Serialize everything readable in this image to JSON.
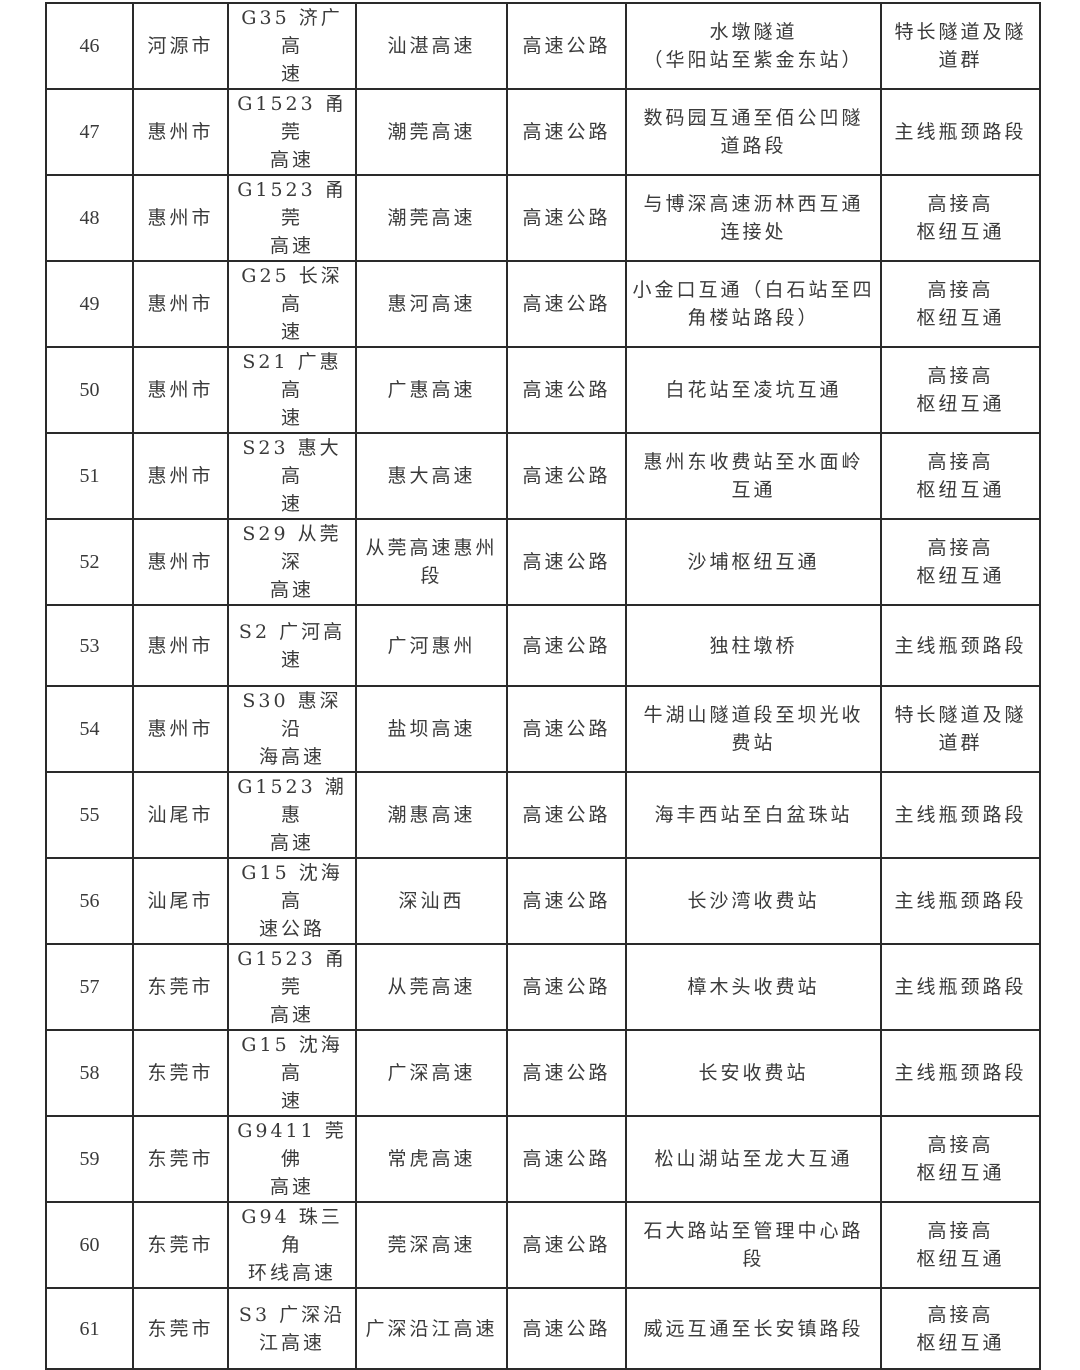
{
  "table": {
    "rows": [
      [
        "46",
        "河源市",
        "G35 济广高\n速",
        "汕湛高速",
        "高速公路",
        "水墩隧道\n（华阳站至紫金东站）",
        "特长隧道及隧\n道群"
      ],
      [
        "47",
        "惠州市",
        "G1523 甬莞\n高速",
        "潮莞高速",
        "高速公路",
        "数码园互通至佰公凹隧\n道路段",
        "主线瓶颈路段"
      ],
      [
        "48",
        "惠州市",
        "G1523 甬莞\n高速",
        "潮莞高速",
        "高速公路",
        "与博深高速沥林西互通\n连接处",
        "高接高\n枢纽互通"
      ],
      [
        "49",
        "惠州市",
        "G25 长深高\n速",
        "惠河高速",
        "高速公路",
        "小金口互通（白石站至四\n角楼站路段）",
        "高接高\n枢纽互通"
      ],
      [
        "50",
        "惠州市",
        "S21 广惠高\n速",
        "广惠高速",
        "高速公路",
        "白花站至凌坑互通",
        "高接高\n枢纽互通"
      ],
      [
        "51",
        "惠州市",
        "S23 惠大高\n速",
        "惠大高速",
        "高速公路",
        "惠州东收费站至水面岭\n互通",
        "高接高\n枢纽互通"
      ],
      [
        "52",
        "惠州市",
        "S29 从莞深\n高速",
        "从莞高速惠州\n段",
        "高速公路",
        "沙埔枢纽互通",
        "高接高\n枢纽互通"
      ],
      [
        "53",
        "惠州市",
        "S2 广河高\n速",
        "广河惠州",
        "高速公路",
        "独柱墩桥",
        "主线瓶颈路段"
      ],
      [
        "54",
        "惠州市",
        "S30 惠深沿\n海高速",
        "盐坝高速",
        "高速公路",
        "牛湖山隧道段至坝光收\n费站",
        "特长隧道及隧\n道群"
      ],
      [
        "55",
        "汕尾市",
        "G1523 潮惠\n高速",
        "潮惠高速",
        "高速公路",
        "海丰西站至白盆珠站",
        "主线瓶颈路段"
      ],
      [
        "56",
        "汕尾市",
        "G15 沈海高\n速公路",
        "深汕西",
        "高速公路",
        "长沙湾收费站",
        "主线瓶颈路段"
      ],
      [
        "57",
        "东莞市",
        "G1523 甬莞\n高速",
        "从莞高速",
        "高速公路",
        "樟木头收费站",
        "主线瓶颈路段"
      ],
      [
        "58",
        "东莞市",
        "G15 沈海高\n速",
        "广深高速",
        "高速公路",
        "长安收费站",
        "主线瓶颈路段"
      ],
      [
        "59",
        "东莞市",
        "G9411 莞佛\n高速",
        "常虎高速",
        "高速公路",
        "松山湖站至龙大互通",
        "高接高\n枢纽互通"
      ],
      [
        "60",
        "东莞市",
        "G94 珠三角\n环线高速",
        "莞深高速",
        "高速公路",
        "石大路站至管理中心路\n段",
        "高接高\n枢纽互通"
      ],
      [
        "61",
        "东莞市",
        "S3 广深沿\n江高速",
        "广深沿江高速",
        "高速公路",
        "威远互通至长安镇路段",
        "高接高\n枢纽互通"
      ]
    ]
  }
}
